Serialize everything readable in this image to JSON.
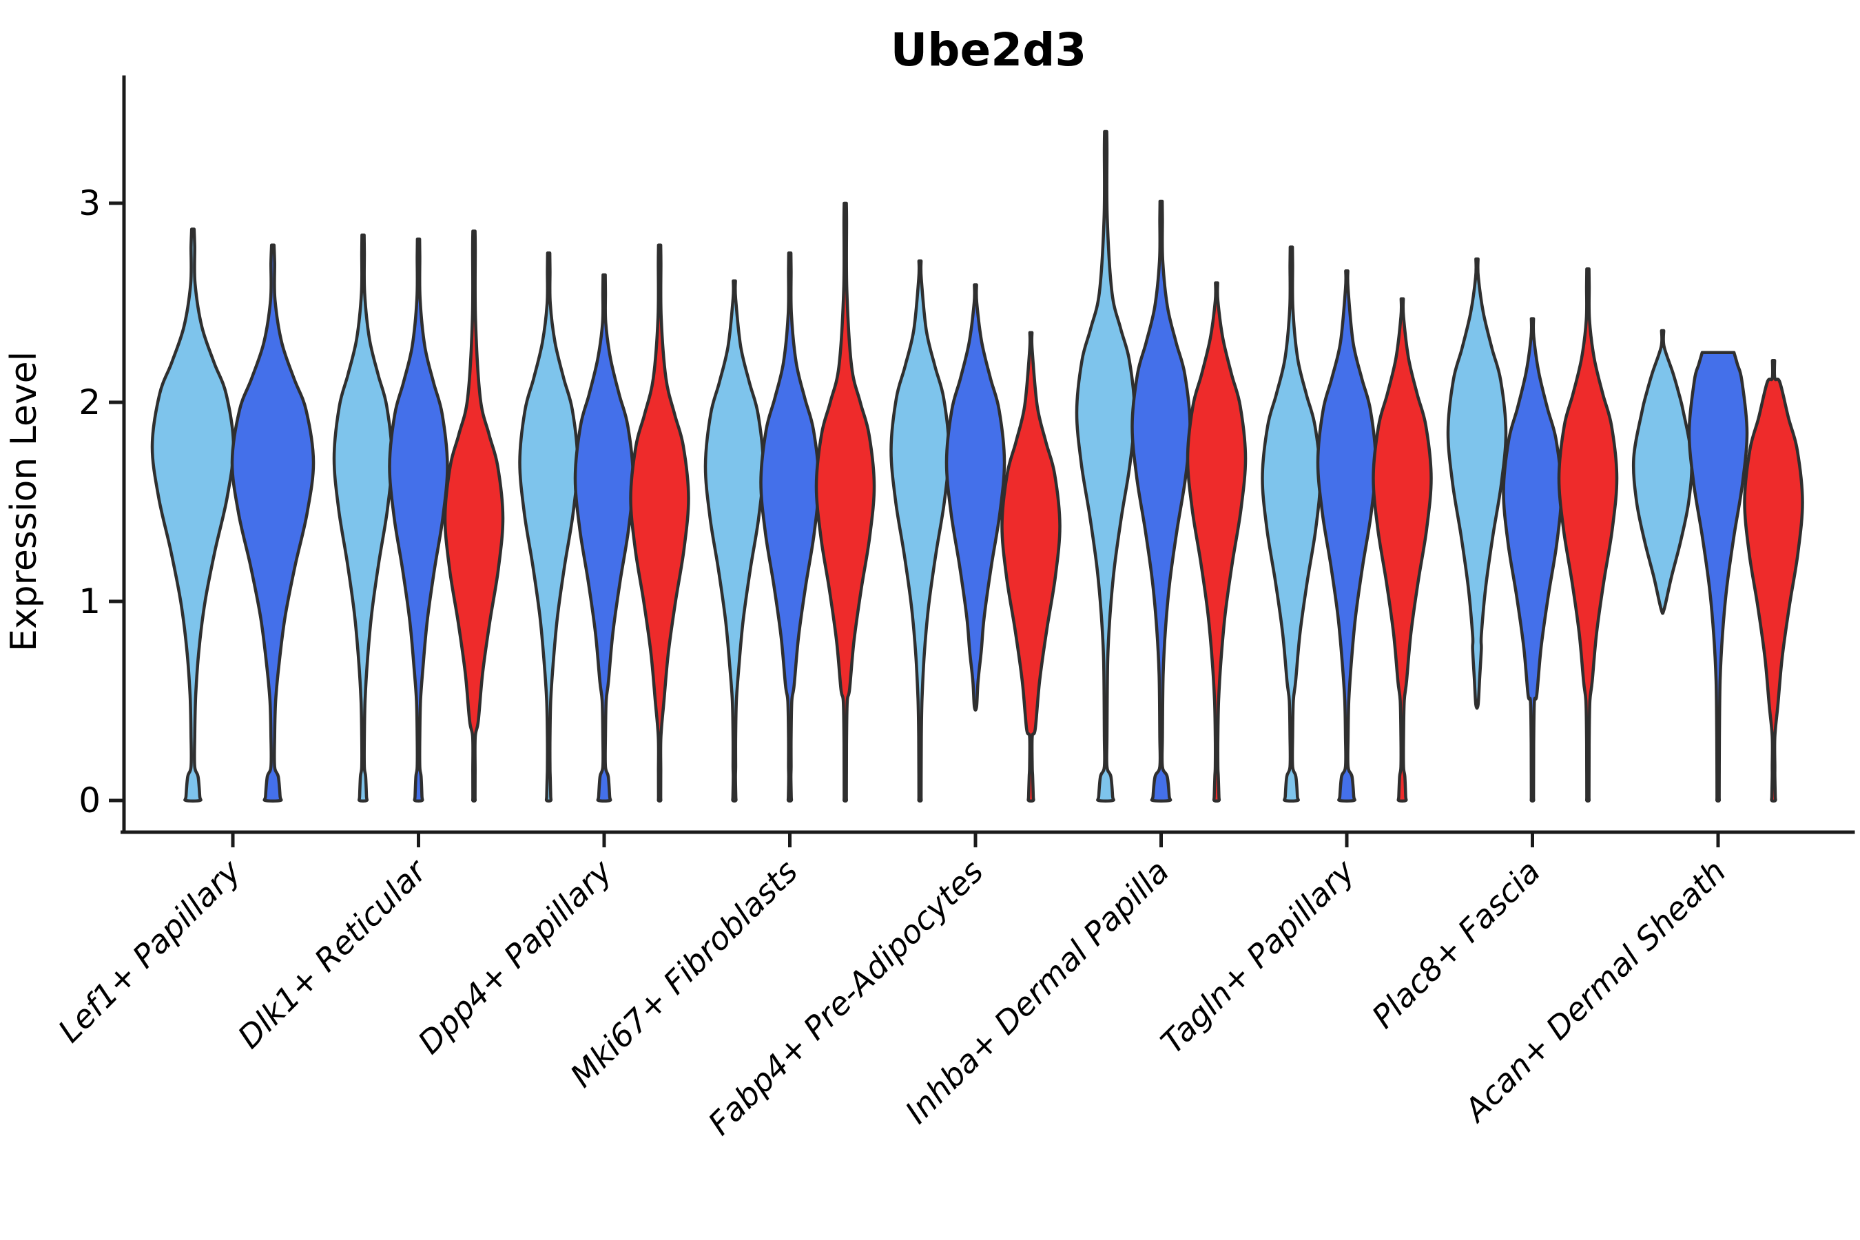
{
  "title": "Ube2d3",
  "ylabel": "Expression Level",
  "colors": {
    "outline": "#2f2f2f",
    "axis": "#1a1a1a",
    "text": "#000000",
    "background": "#ffffff"
  },
  "chart_data": {
    "type": "violin",
    "title": "Ube2d3",
    "ylabel": "Expression Level",
    "xlabel": "",
    "ylim": [
      0,
      3.6
    ],
    "yticks": [
      0,
      1,
      2,
      3
    ],
    "grid": false,
    "legend": "none",
    "splits": [
      {
        "key": "skyblue",
        "color": "#7ec4ec"
      },
      {
        "key": "royalblue",
        "color": "#4470ea"
      },
      {
        "key": "red",
        "color": "#ee2b2b"
      }
    ],
    "categories": [
      {
        "label": "Lef1+ Papillary",
        "violins": [
          {
            "split": "skyblue",
            "ymin": 0,
            "ymax": 2.87,
            "mode": 1.78,
            "zero_bump": 0.17
          },
          {
            "split": "royalblue",
            "ymin": 0,
            "ymax": 2.79,
            "mode": 1.7,
            "zero_bump": 0.18
          }
        ]
      },
      {
        "label": "Dlk1+ Reticular",
        "violins": [
          {
            "split": "skyblue",
            "ymin": 0,
            "ymax": 2.84,
            "mode": 1.72,
            "zero_bump": 0.12
          },
          {
            "split": "royalblue",
            "ymin": 0,
            "ymax": 2.82,
            "mode": 1.68,
            "zero_bump": 0.12
          },
          {
            "split": "red",
            "ymin": 0,
            "ymax": 2.86,
            "mode": 1.42,
            "zero_bump": 0
          }
        ]
      },
      {
        "label": "Dpp4+ Papillary",
        "violins": [
          {
            "split": "skyblue",
            "ymin": 0,
            "ymax": 2.75,
            "mode": 1.7,
            "zero_bump": 0.07
          },
          {
            "split": "royalblue",
            "ymin": 0,
            "ymax": 2.64,
            "mode": 1.62,
            "zero_bump": 0.19
          },
          {
            "split": "red",
            "ymin": 0,
            "ymax": 2.79,
            "mode": 1.52,
            "zero_bump": 0
          }
        ]
      },
      {
        "label": "Mki67+ Fibroblasts",
        "violins": [
          {
            "split": "skyblue",
            "ymin": 0,
            "ymax": 2.61,
            "mode": 1.68,
            "zero_bump": 0.05
          },
          {
            "split": "royalblue",
            "ymin": 0,
            "ymax": 2.75,
            "mode": 1.6,
            "zero_bump": 0.05
          },
          {
            "split": "red",
            "ymin": 0,
            "ymax": 3.0,
            "mode": 1.58,
            "zero_bump": 0
          }
        ]
      },
      {
        "label": "Fabp4+ Pre-Adipocytes",
        "violins": [
          {
            "split": "skyblue",
            "ymin": 0,
            "ymax": 2.71,
            "mode": 1.76,
            "zero_bump": 0
          },
          {
            "split": "royalblue",
            "ymin": 0.47,
            "ymax": 2.59,
            "mode": 1.7,
            "zero_bump": 0
          },
          {
            "split": "red",
            "ymin": 0,
            "ymax": 2.35,
            "mode": 1.38,
            "zero_bump": 0.08
          }
        ]
      },
      {
        "label": "Inhba+ Dermal Papilla",
        "violins": [
          {
            "split": "skyblue",
            "ymin": 0,
            "ymax": 3.36,
            "mode": 1.95,
            "zero_bump": 0.24
          },
          {
            "split": "royalblue",
            "ymin": 0,
            "ymax": 3.01,
            "mode": 1.88,
            "zero_bump": 0.28
          },
          {
            "split": "red",
            "ymin": 0,
            "ymax": 2.6,
            "mode": 1.72,
            "zero_bump": 0.08
          }
        ]
      },
      {
        "label": "Tagln+ Papillary",
        "violins": [
          {
            "split": "skyblue",
            "ymin": 0,
            "ymax": 2.78,
            "mode": 1.62,
            "zero_bump": 0.21
          },
          {
            "split": "royalblue",
            "ymin": 0,
            "ymax": 2.66,
            "mode": 1.7,
            "zero_bump": 0.24
          },
          {
            "split": "red",
            "ymin": 0,
            "ymax": 2.52,
            "mode": 1.62,
            "zero_bump": 0.12
          }
        ]
      },
      {
        "label": "Plac8+ Fascia",
        "violins": [
          {
            "split": "skyblue",
            "ymin": 0.48,
            "ymax": 2.72,
            "mode": 1.85,
            "zero_bump": 0
          },
          {
            "split": "royalblue",
            "ymin": 0,
            "ymax": 2.42,
            "mode": 1.55,
            "zero_bump": 0
          },
          {
            "split": "red",
            "ymin": 0,
            "ymax": 2.67,
            "mode": 1.62,
            "zero_bump": 0
          }
        ]
      },
      {
        "label": "Acan+ Dermal Sheath",
        "violins": [
          {
            "split": "skyblue",
            "ymin": 0.96,
            "ymax": 2.36,
            "mode": 1.72,
            "zero_bump": 0,
            "profile": [
              [
                2.36,
                0.03
              ],
              [
                2.28,
                0.05
              ],
              [
                2.15,
                0.35
              ],
              [
                2.05,
                0.55
              ],
              [
                1.95,
                0.72
              ],
              [
                1.72,
                1.0
              ],
              [
                1.5,
                0.9
              ],
              [
                1.3,
                0.62
              ],
              [
                1.12,
                0.3
              ],
              [
                0.96,
                0.05
              ]
            ]
          },
          {
            "split": "royalblue",
            "ymin": 0,
            "ymax": 2.25,
            "mode": 1.85,
            "zero_bump": 0,
            "flat_top": 0.55
          },
          {
            "split": "red",
            "ymin": 0,
            "ymax": 2.21,
            "mode": 1.5,
            "zero_bump": 0.06
          }
        ]
      }
    ]
  }
}
